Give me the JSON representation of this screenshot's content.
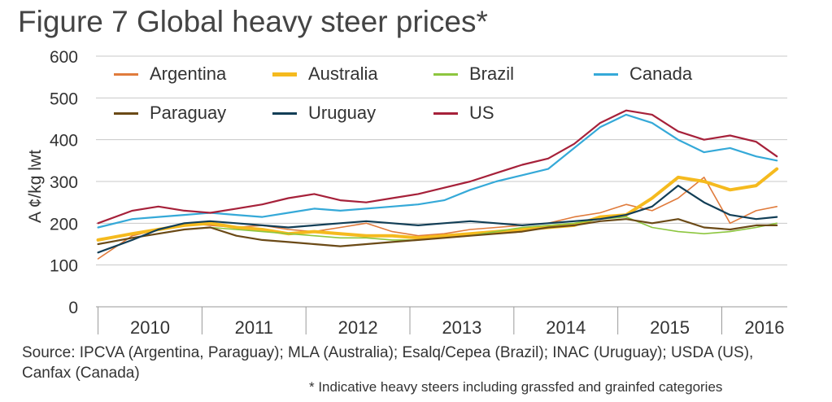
{
  "title": "Figure 7 Global heavy steer prices*",
  "source": "Source: IPCVA (Argentina, Paraguay); MLA (Australia); Esalq/Cepea (Brazil); INAC (Uruguay); USDA (US), Canfax (Canada)",
  "note": "* Indicative heavy steers including grassfed and grainfed categories",
  "chart_data": {
    "type": "line",
    "title": "Figure 7 Global heavy steer prices*",
    "ylabel": "A ¢/kg  lwt",
    "xlabel": "",
    "ylim": [
      0,
      600
    ],
    "yticks": [
      "0",
      "100",
      "200",
      "300",
      "400",
      "500",
      "600"
    ],
    "xlim": [
      2009.9,
      2016.55
    ],
    "xticks": [
      "2010",
      "2011",
      "2012",
      "2013",
      "2014",
      "2015",
      "2016"
    ],
    "grid": "horizontal",
    "legend_position": "top",
    "x": [
      2009.92,
      2010.25,
      2010.5,
      2010.75,
      2011.0,
      2011.25,
      2011.5,
      2011.75,
      2012.0,
      2012.25,
      2012.5,
      2012.75,
      2013.0,
      2013.25,
      2013.5,
      2013.75,
      2014.0,
      2014.25,
      2014.5,
      2014.75,
      2015.0,
      2015.25,
      2015.5,
      2015.75,
      2016.0,
      2016.25,
      2016.45
    ],
    "series": [
      {
        "name": "Argentina",
        "color": "#E07B3C",
        "width": 1.6,
        "values": [
          115,
          170,
          185,
          200,
          195,
          190,
          195,
          185,
          180,
          190,
          200,
          180,
          170,
          175,
          185,
          190,
          195,
          200,
          215,
          225,
          245,
          230,
          260,
          310,
          200,
          230,
          240
        ]
      },
      {
        "name": "Australia",
        "color": "#F5BA1E",
        "width": 4,
        "values": [
          160,
          175,
          185,
          195,
          200,
          190,
          185,
          175,
          180,
          175,
          170,
          170,
          165,
          170,
          175,
          180,
          185,
          190,
          195,
          215,
          220,
          260,
          310,
          300,
          280,
          290,
          330
        ]
      },
      {
        "name": "Brazil",
        "color": "#8DC63F",
        "width": 1.6,
        "values": [
          150,
          165,
          175,
          185,
          190,
          185,
          180,
          175,
          170,
          165,
          165,
          160,
          160,
          165,
          170,
          180,
          190,
          195,
          200,
          210,
          215,
          190,
          180,
          175,
          180,
          190,
          200
        ]
      },
      {
        "name": "Canada",
        "color": "#35A9D8",
        "width": 2.2,
        "values": [
          190,
          210,
          215,
          220,
          225,
          220,
          215,
          225,
          235,
          230,
          235,
          240,
          245,
          255,
          280,
          300,
          315,
          330,
          380,
          430,
          460,
          440,
          400,
          370,
          380,
          360,
          350
        ]
      },
      {
        "name": "Paraguay",
        "color": "#6B4A17",
        "width": 2.2,
        "values": [
          150,
          165,
          175,
          185,
          190,
          170,
          160,
          155,
          150,
          145,
          150,
          155,
          160,
          165,
          170,
          175,
          180,
          190,
          195,
          205,
          210,
          200,
          210,
          190,
          185,
          195,
          195
        ]
      },
      {
        "name": "Uruguay",
        "color": "#123E56",
        "width": 2.2,
        "values": [
          130,
          160,
          185,
          200,
          205,
          200,
          195,
          190,
          195,
          200,
          205,
          200,
          195,
          200,
          205,
          200,
          195,
          200,
          205,
          210,
          220,
          240,
          290,
          250,
          220,
          210,
          215
        ]
      },
      {
        "name": "US",
        "color": "#A6213A",
        "width": 2.2,
        "values": [
          200,
          230,
          240,
          230,
          225,
          235,
          245,
          260,
          270,
          255,
          250,
          260,
          270,
          285,
          300,
          320,
          340,
          355,
          390,
          440,
          470,
          460,
          420,
          400,
          410,
          395,
          360
        ]
      }
    ]
  }
}
